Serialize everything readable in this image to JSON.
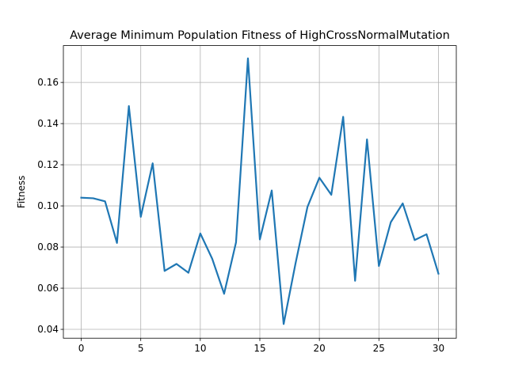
{
  "chart_data": {
    "type": "line",
    "title": "Average Minimum Population Fitness of HighCrossNormalMutation",
    "xlabel": "",
    "ylabel": "Fitness",
    "xlim": [
      -1.5,
      31.5
    ],
    "ylim": [
      0.0357,
      0.1779
    ],
    "xticks": [
      0,
      5,
      10,
      15,
      20,
      25,
      30
    ],
    "yticks": [
      0.04,
      0.06,
      0.08,
      0.1,
      0.12,
      0.14,
      0.16
    ],
    "ytick_labels": [
      "0.04",
      "0.06",
      "0.08",
      "0.10",
      "0.12",
      "0.14",
      "0.16"
    ],
    "grid": true,
    "legend": "none",
    "series": [
      {
        "color": "#1f77b4",
        "x": [
          0,
          1,
          2,
          3,
          4,
          5,
          6,
          7,
          8,
          9,
          10,
          11,
          12,
          13,
          14,
          15,
          16,
          17,
          18,
          19,
          20,
          21,
          22,
          23,
          24,
          25,
          26,
          27,
          28,
          29,
          30
        ],
        "y": [
          0.104,
          0.1037,
          0.1022,
          0.082,
          0.1485,
          0.0947,
          0.1207,
          0.0684,
          0.0718,
          0.0675,
          0.0866,
          0.0743,
          0.0573,
          0.0823,
          0.1717,
          0.0837,
          0.1075,
          0.0426,
          0.0721,
          0.0995,
          0.1137,
          0.1054,
          0.1433,
          0.0636,
          0.1323,
          0.0708,
          0.0921,
          0.1012,
          0.0834,
          0.0862,
          0.0671
        ]
      }
    ]
  }
}
